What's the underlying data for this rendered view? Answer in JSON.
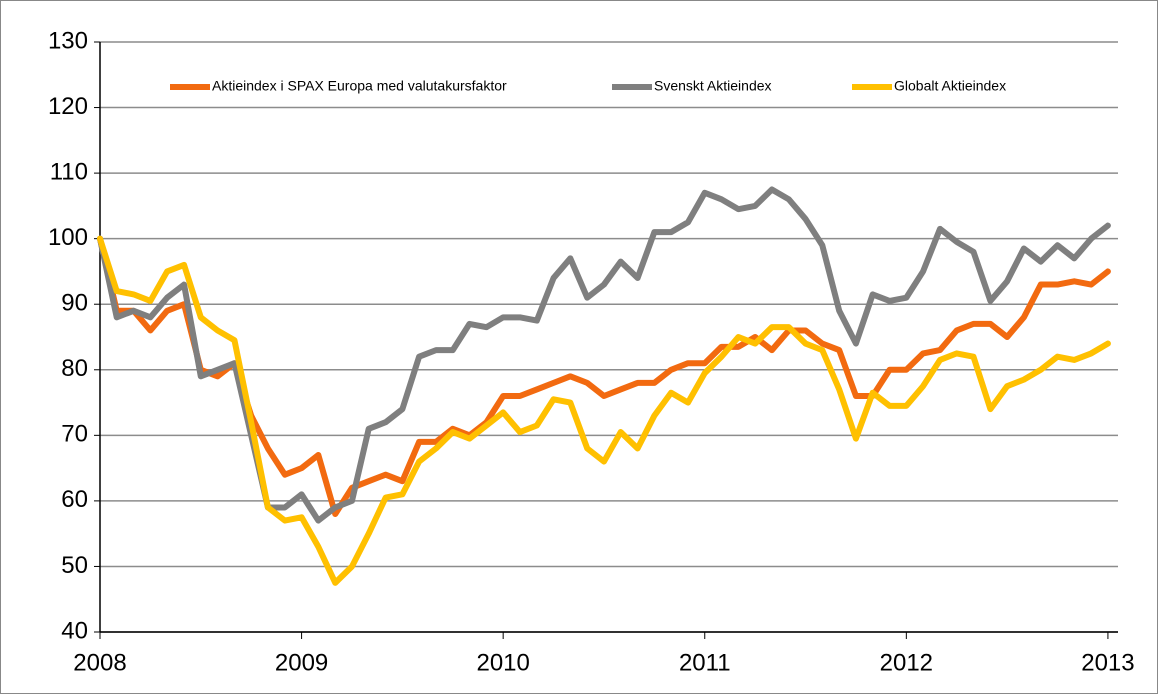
{
  "chart_data": {
    "type": "line",
    "x": [
      2008,
      2008.083,
      2008.167,
      2008.25,
      2008.333,
      2008.417,
      2008.5,
      2008.583,
      2008.667,
      2008.75,
      2008.833,
      2008.917,
      2009,
      2009.083,
      2009.167,
      2009.25,
      2009.333,
      2009.417,
      2009.5,
      2009.583,
      2009.667,
      2009.75,
      2009.833,
      2009.917,
      2010,
      2010.083,
      2010.167,
      2010.25,
      2010.333,
      2010.417,
      2010.5,
      2010.583,
      2010.667,
      2010.75,
      2010.833,
      2010.917,
      2011,
      2011.083,
      2011.167,
      2011.25,
      2011.333,
      2011.417,
      2011.5,
      2011.583,
      2011.667,
      2011.75,
      2011.833,
      2011.917,
      2012,
      2012.083,
      2012.167,
      2012.25,
      2012.333,
      2012.417,
      2012.5,
      2012.583,
      2012.667,
      2012.75,
      2012.833,
      2012.917,
      2013
    ],
    "series": [
      {
        "name": "Aktieindex i SPAX Europa  med valutakursfaktor",
        "color": "#f26a10",
        "values": [
          100,
          89,
          89,
          86,
          89,
          90,
          80,
          79,
          81,
          73,
          68,
          64,
          65,
          67,
          58,
          62,
          63,
          64,
          63,
          69,
          69,
          71,
          70,
          72,
          76,
          76,
          77,
          78,
          79,
          78,
          76,
          77,
          78,
          78,
          80,
          81,
          81,
          83.5,
          83.5,
          85,
          83,
          86,
          86,
          84,
          83,
          76,
          76,
          80,
          80,
          82.5,
          83,
          86,
          87,
          87,
          85,
          88,
          93,
          93,
          93.5,
          93,
          95
        ]
      },
      {
        "name": "Svenskt Aktieindex",
        "color": "#7f7f7f",
        "values": [
          100,
          88,
          89,
          88,
          91,
          93,
          79,
          80,
          81,
          70,
          59,
          59,
          61,
          57,
          59,
          60,
          71,
          72,
          74,
          82,
          83,
          83,
          87,
          86.5,
          88,
          88,
          87.5,
          94,
          97,
          91,
          93,
          96.5,
          94,
          101,
          101,
          102.5,
          107,
          106,
          104.5,
          105,
          107.5,
          106,
          103,
          99,
          89,
          84,
          91.5,
          90.5,
          91,
          95,
          101.5,
          99.5,
          98,
          90.5,
          93.5,
          98.5,
          96.5,
          99,
          97,
          100,
          102
        ]
      },
      {
        "name": "Globalt Aktieindex",
        "color": "#ffc000",
        "values": [
          100,
          92,
          91.5,
          90.5,
          95,
          96,
          88,
          86,
          84.5,
          72,
          59,
          57,
          57.5,
          53,
          47.5,
          50,
          55,
          60.5,
          61,
          66,
          68,
          70.5,
          69.5,
          71.5,
          73.5,
          70.5,
          71.5,
          75.5,
          75,
          68,
          66,
          70.5,
          68,
          73,
          76.5,
          75,
          79.5,
          82,
          85,
          84,
          86.5,
          86.5,
          84,
          83,
          77,
          69.5,
          76.5,
          74.5,
          74.5,
          77.5,
          81.5,
          82.5,
          82,
          74,
          77.5,
          78.5,
          80,
          82,
          81.5,
          82.5,
          84
        ]
      }
    ],
    "xlim": [
      2008,
      2013.05
    ],
    "xticks": [
      2008,
      2009,
      2010,
      2011,
      2012,
      2013
    ],
    "ylim": [
      40,
      130
    ],
    "yticks": [
      40,
      50,
      60,
      70,
      80,
      90,
      100,
      110,
      120,
      130
    ],
    "grid": true,
    "legend": "top"
  }
}
